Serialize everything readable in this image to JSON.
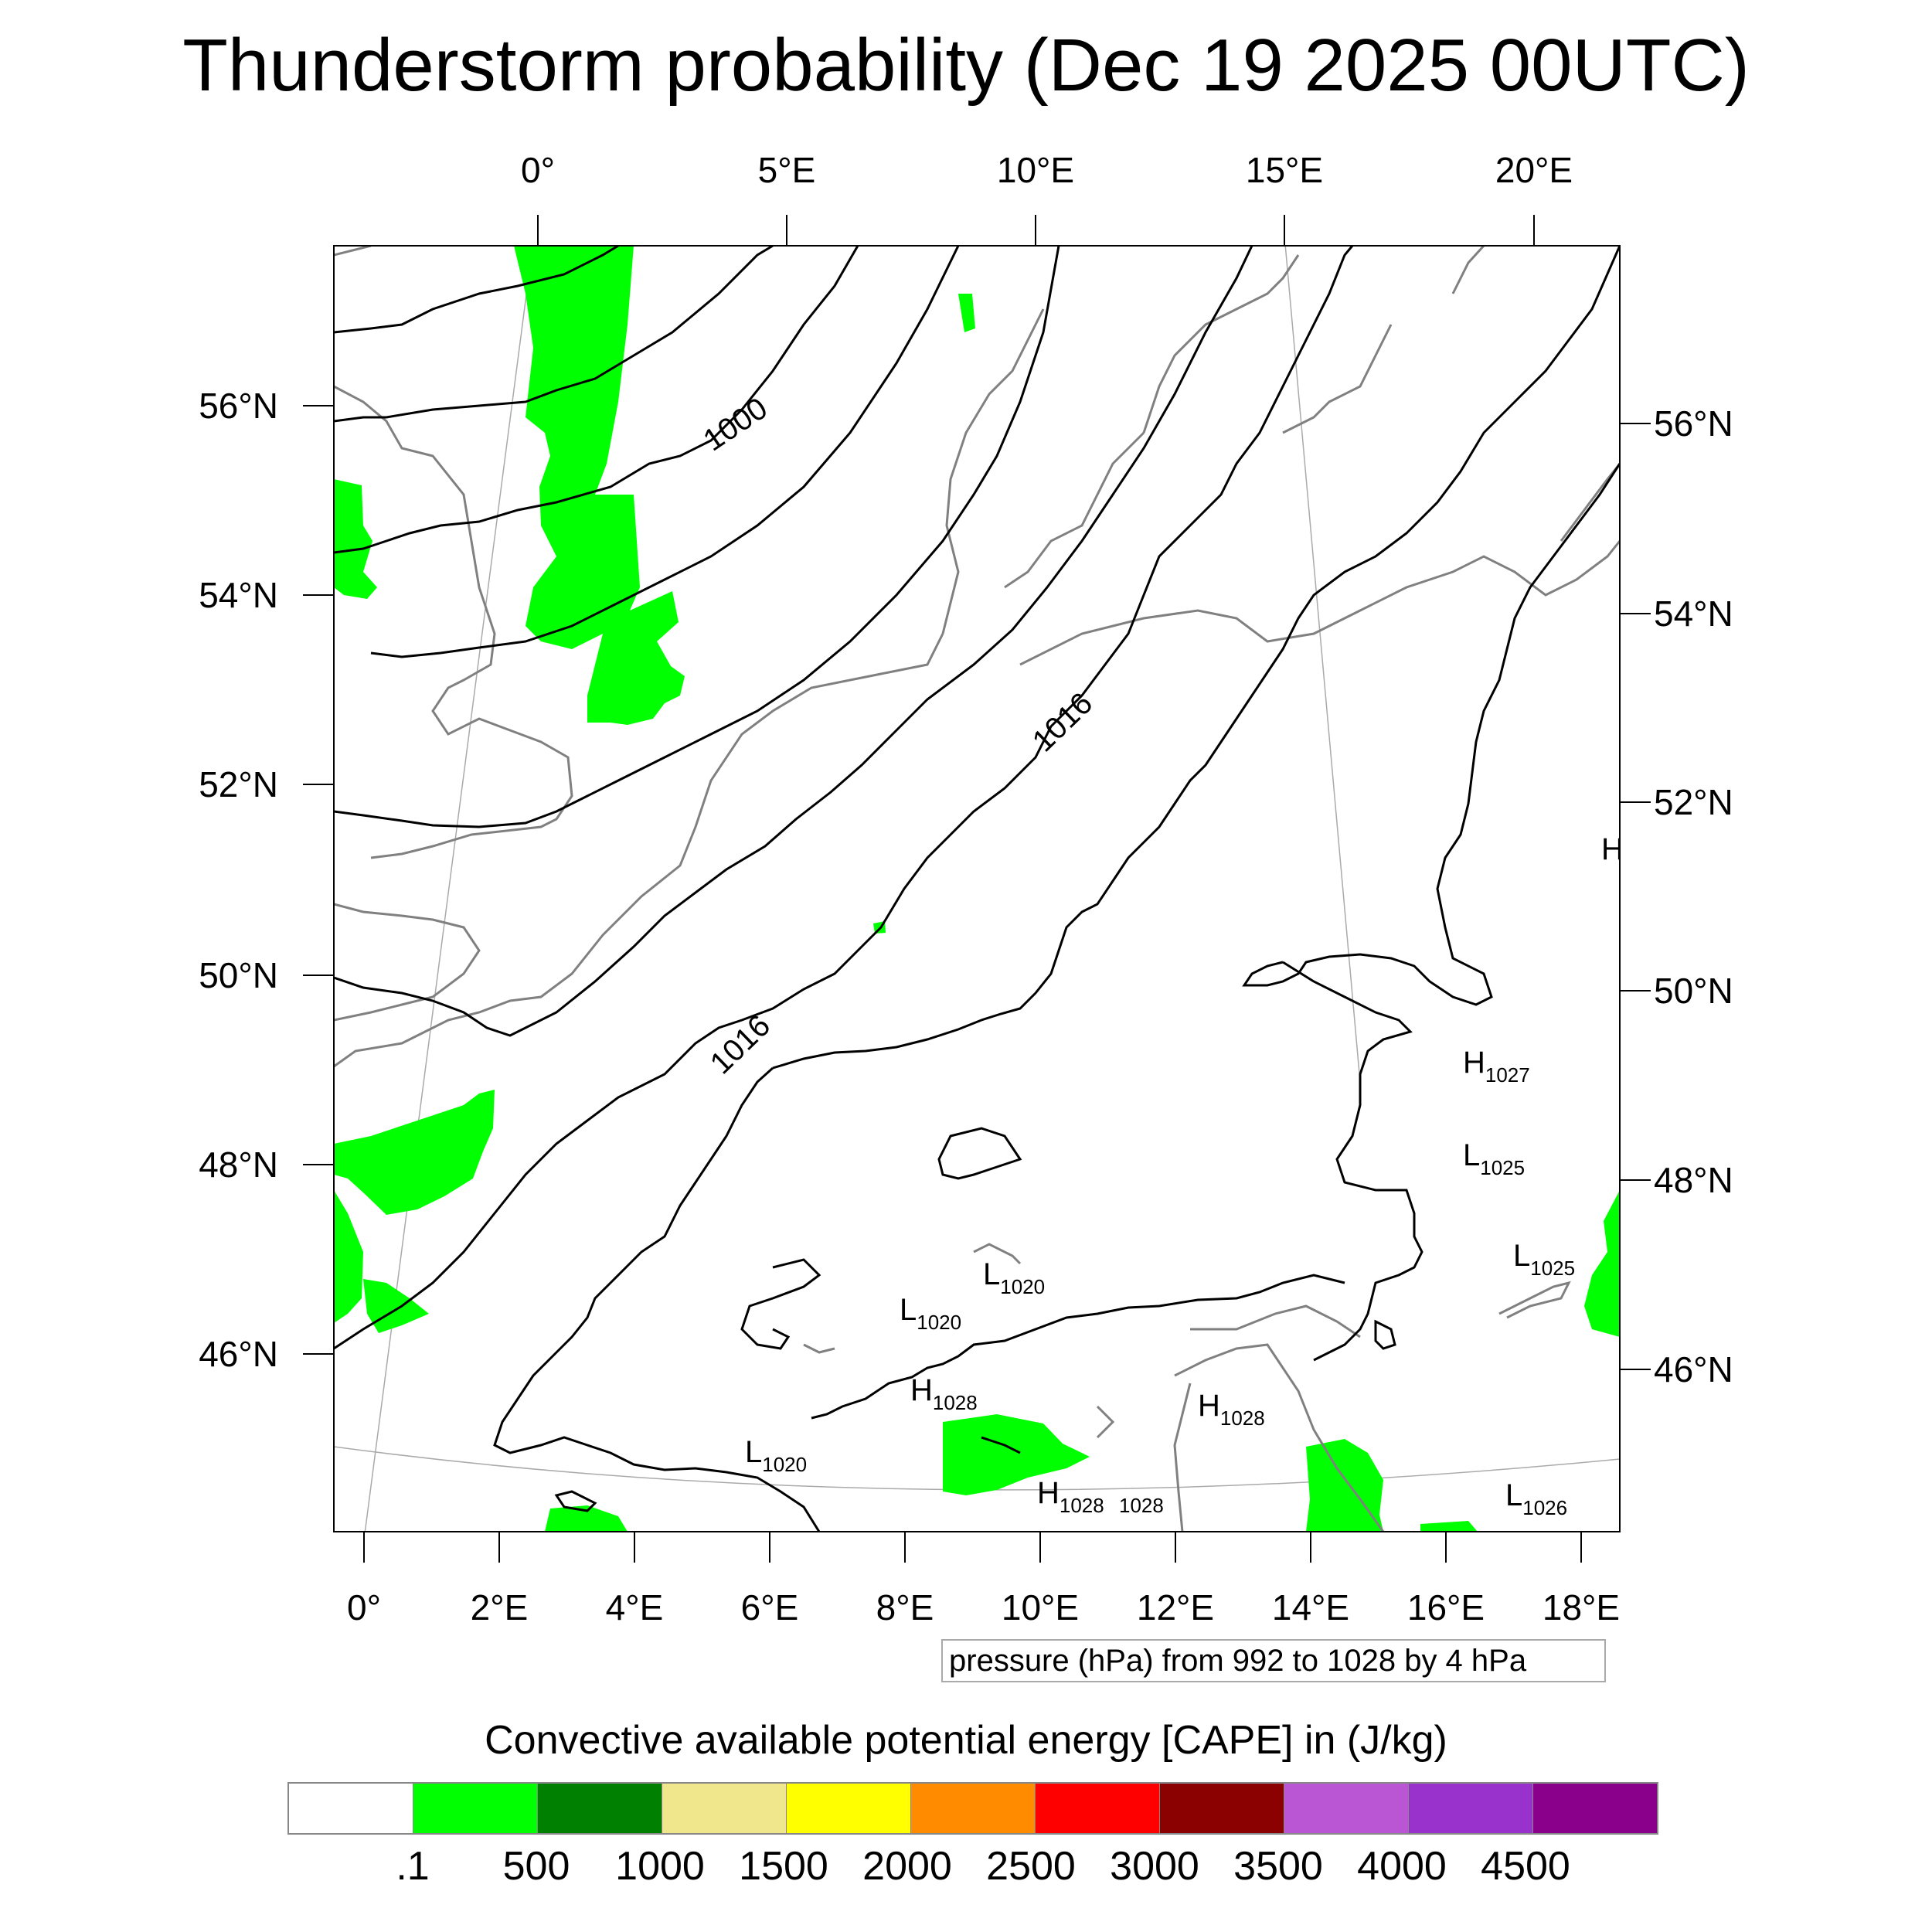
{
  "title": "Thunderstorm probability (Dec 19 2025 00UTC)",
  "top_lon_labels": [
    "0°",
    "5°E",
    "10°E",
    "15°E",
    "20°E"
  ],
  "bottom_lon_labels": [
    "0°",
    "2°E",
    "4°E",
    "6°E",
    "8°E",
    "10°E",
    "12°E",
    "14°E",
    "16°E",
    "18°E"
  ],
  "left_lat_labels": [
    "56°N",
    "54°N",
    "52°N",
    "50°N",
    "48°N",
    "46°N"
  ],
  "right_lat_labels": [
    "56°N",
    "54°N",
    "52°N",
    "50°N",
    "48°N",
    "46°N"
  ],
  "contour_labels": [
    "1000",
    "1016",
    "1016"
  ],
  "pressure_centers": [
    {
      "letter": "H",
      "value": "1027"
    },
    {
      "letter": "L",
      "value": "1025"
    },
    {
      "letter": "L",
      "value": "1025"
    },
    {
      "letter": "L",
      "value": "1020"
    },
    {
      "letter": "L",
      "value": "1020"
    },
    {
      "letter": "H",
      "value": "1028"
    },
    {
      "letter": "H",
      "value": "1028"
    },
    {
      "letter": "L",
      "value": "1020"
    },
    {
      "letter": "H",
      "value": "1028"
    },
    {
      "letter": "",
      "value": "1028"
    },
    {
      "letter": "L",
      "value": "1026"
    },
    {
      "letter": "H",
      "value": ""
    }
  ],
  "info_text": "pressure (hPa) from 992 to 1028 by 4 hPa",
  "colorbar": {
    "title": "Convective available potential energy [CAPE] in (J/kg)",
    "labels": [
      ".1",
      "500",
      "1000",
      "1500",
      "2000",
      "2500",
      "3000",
      "3500",
      "4000",
      "4500"
    ],
    "colors": [
      "#ffffff",
      "#00ff00",
      "#008000",
      "#f0e68c",
      "#ffff00",
      "#ff8c00",
      "#ff0000",
      "#8b0000",
      "#ba55d3",
      "#9932cc",
      "#8b008b"
    ]
  },
  "colors": {
    "cape_area": "#00ff00",
    "isobar": "#000000",
    "coastline": "#808080",
    "graticule": "#aaaaaa"
  }
}
